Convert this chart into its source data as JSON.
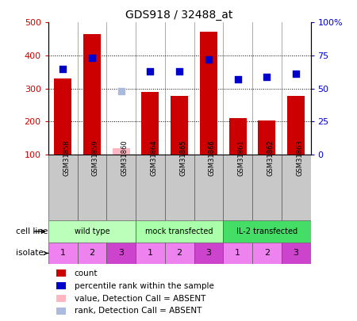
{
  "title": "GDS918 / 32488_at",
  "samples": [
    "GSM31858",
    "GSM31859",
    "GSM31860",
    "GSM31864",
    "GSM31865",
    "GSM31866",
    "GSM31861",
    "GSM31862",
    "GSM31863"
  ],
  "counts": [
    330,
    465,
    null,
    290,
    278,
    472,
    210,
    202,
    278
  ],
  "counts_absent": [
    null,
    null,
    120,
    null,
    null,
    null,
    null,
    null,
    null
  ],
  "percentile_ranks": [
    65,
    73,
    null,
    63,
    63,
    72,
    57,
    59,
    61
  ],
  "percentile_ranks_absent": [
    null,
    null,
    48,
    null,
    null,
    null,
    null,
    null,
    null
  ],
  "ylim_left": [
    100,
    500
  ],
  "ylim_right": [
    0,
    100
  ],
  "yticks_left": [
    100,
    200,
    300,
    400,
    500
  ],
  "yticks_right": [
    0,
    25,
    50,
    75,
    100
  ],
  "ytick_labels_left": [
    "100",
    "200",
    "300",
    "400",
    "500"
  ],
  "ytick_labels_right": [
    "0",
    "25",
    "50",
    "75",
    "100%"
  ],
  "cell_line_groups": [
    {
      "label": "wild type",
      "start": 0,
      "end": 3,
      "color": "#BBFFBB"
    },
    {
      "label": "mock transfected",
      "start": 3,
      "end": 6,
      "color": "#AAFFAA"
    },
    {
      "label": "IL-2 transfected",
      "start": 6,
      "end": 9,
      "color": "#44DD66"
    }
  ],
  "isolates": [
    "1",
    "2",
    "3",
    "1",
    "2",
    "3",
    "1",
    "2",
    "3"
  ],
  "isolate_colors": [
    "#EE82EE",
    "#EE82EE",
    "#CC44CC",
    "#EE82EE",
    "#EE82EE",
    "#CC44CC",
    "#EE82EE",
    "#EE82EE",
    "#CC44CC"
  ],
  "bar_color": "#CC0000",
  "bar_absent_color": "#FFB6C1",
  "dot_color": "#0000CC",
  "dot_absent_color": "#AABBDD",
  "bar_width": 0.6,
  "tick_label_color_left": "#CC0000",
  "tick_label_color_right": "#0000CC",
  "sample_box_color": "#C8C8C8",
  "legend_items": [
    {
      "label": "count",
      "color": "#CC0000"
    },
    {
      "label": "percentile rank within the sample",
      "color": "#0000CC"
    },
    {
      "label": "value, Detection Call = ABSENT",
      "color": "#FFB6C1"
    },
    {
      "label": "rank, Detection Call = ABSENT",
      "color": "#AABBDD"
    }
  ]
}
